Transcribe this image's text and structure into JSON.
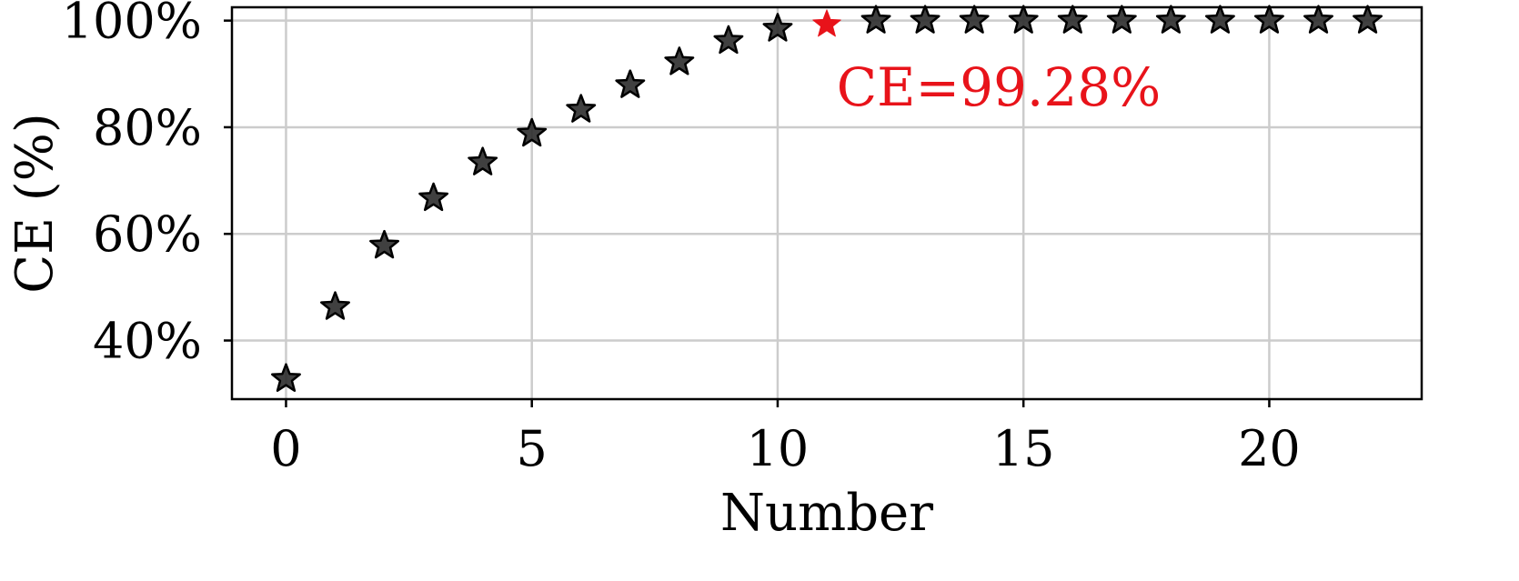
{
  "chart_data": {
    "type": "scatter",
    "xlabel": "Number",
    "ylabel": "CE (%)",
    "xlim": [
      -1.1,
      23.1
    ],
    "ylim": [
      29,
      102.5
    ],
    "xticks": [
      0,
      5,
      10,
      15,
      20
    ],
    "yticks": [
      40,
      60,
      80,
      100
    ],
    "ytick_format": "percent",
    "grid": true,
    "marker": "star",
    "colors": {
      "default": "#2b2b2b",
      "highlight": "#e8131a"
    },
    "series": [
      {
        "x": [
          0,
          1,
          2,
          3,
          4,
          5,
          6,
          7,
          8,
          9,
          10,
          11,
          12,
          13,
          14,
          15,
          16,
          17,
          18,
          19,
          20,
          21,
          22
        ],
        "y": [
          32.8,
          46.3,
          57.8,
          66.7,
          73.4,
          78.8,
          83.3,
          87.9,
          92.2,
          96.2,
          98.5,
          99.28,
          100,
          100,
          100,
          100,
          100,
          100,
          100,
          100,
          100,
          100,
          100
        ]
      }
    ],
    "highlight": {
      "index": 11,
      "label": "CE=99.28%",
      "label_x": 11.2,
      "label_y": 87.5
    }
  }
}
